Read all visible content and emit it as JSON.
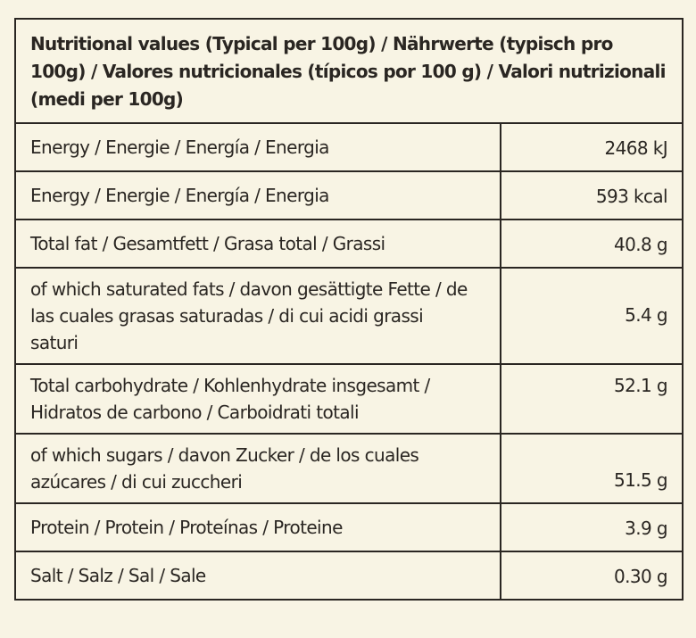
{
  "header": "Nutritional values (Typical per 100g) / Nährwerte (typisch pro 100g) / Valores nutricionales (típicos por 100 g) / Valori nutrizionali (medi per 100g)",
  "rows": [
    {
      "label": "Energy / Energie / Energía / Energia",
      "value": "2468 kJ"
    },
    {
      "label": "Energy / Energie / Energía / Energia",
      "value": "593 kcal"
    },
    {
      "label": "Total fat / Gesamtfett / Grasa total / Grassi",
      "value": "40.8 g"
    },
    {
      "label": "of which saturated fats /  davon gesättigte Fette / de las cuales grasas saturadas / di cui acidi grassi saturi",
      "value": "5.4 g"
    },
    {
      "label": "Total carbohydrate / Kohlenhydrate insgesamt / Hidratos de carbono / Carboidrati totali",
      "value": "52.1 g"
    },
    {
      "label": "of which sugars / davon Zucker / de los cuales azúcares / di cui zuccheri",
      "value": "51.5 g"
    },
    {
      "label": "Protein / Protein / Proteínas / Proteine",
      "value": "3.9 g"
    },
    {
      "label": "Salt / Salz / Sal / Sale",
      "value": "0.30 g"
    }
  ]
}
